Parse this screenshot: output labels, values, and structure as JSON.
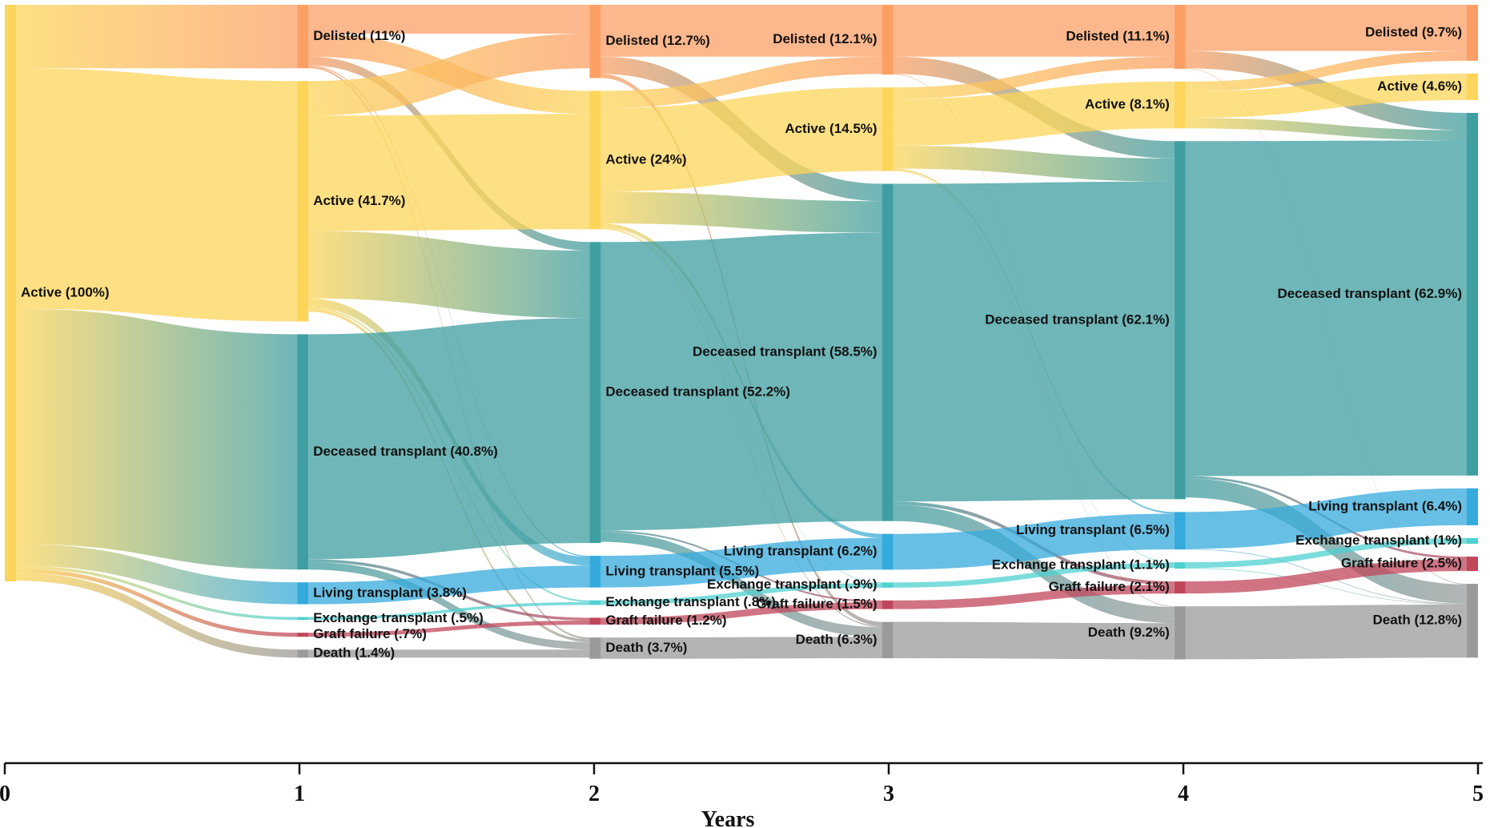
{
  "chart_data": {
    "type": "sankey",
    "xlabel": "Years",
    "xlim": [
      0,
      5
    ],
    "xticks": [
      0,
      1,
      2,
      3,
      4,
      5
    ],
    "columns": [
      {
        "nodes": [
          {
            "label": "Active (100%)",
            "value": 100,
            "color": "#fdd55a"
          }
        ],
        "links": [
          {
            "from": 0,
            "to": 0,
            "value": 11
          },
          {
            "from": 0,
            "to": 1,
            "value": 41.7
          },
          {
            "from": 0,
            "to": 2,
            "value": 40.8
          },
          {
            "from": 0,
            "to": 3,
            "value": 3.8
          },
          {
            "from": 0,
            "to": 4,
            "value": 0.5
          },
          {
            "from": 0,
            "to": 5,
            "value": 0.7
          },
          {
            "from": 0,
            "to": 6,
            "value": 1.4
          }
        ]
      },
      {
        "nodes": [
          {
            "label": "Delisted (11%)",
            "value": 11,
            "color": "#fc9f65"
          },
          {
            "label": "Active (41.7%)",
            "value": 41.7,
            "color": "#fdd55a"
          },
          {
            "label": "Deceased transplant (40.8%)",
            "value": 40.8,
            "color": "#3f9ea0"
          },
          {
            "label": "Living transplant (3.8%)",
            "value": 3.8,
            "color": "#35aadc"
          },
          {
            "label": "Exchange transplant (.5%)",
            "value": 0.5,
            "color": "#4fd1d1"
          },
          {
            "label": "Graft failure (.7%)",
            "value": 0.7,
            "color": "#c0465a"
          },
          {
            "label": "Death (1.4%)",
            "value": 1.4,
            "color": "#9a9a9a"
          }
        ],
        "links": [
          {
            "from": 0,
            "to": 0,
            "value": 5
          },
          {
            "from": 0,
            "to": 1,
            "value": 4
          },
          {
            "from": 0,
            "to": 2,
            "value": 1.5
          },
          {
            "from": 0,
            "to": 3,
            "value": 0.2
          },
          {
            "from": 0,
            "to": 6,
            "value": 0.3
          },
          {
            "from": 1,
            "to": 0,
            "value": 6
          },
          {
            "from": 1,
            "to": 1,
            "value": 20
          },
          {
            "from": 1,
            "to": 2,
            "value": 11.7
          },
          {
            "from": 1,
            "to": 3,
            "value": 1.5
          },
          {
            "from": 1,
            "to": 4,
            "value": 0.3
          },
          {
            "from": 1,
            "to": 6,
            "value": 0.5
          },
          {
            "from": 2,
            "to": 2,
            "value": 39
          },
          {
            "from": 2,
            "to": 5,
            "value": 0.5
          },
          {
            "from": 2,
            "to": 6,
            "value": 1.3
          },
          {
            "from": 3,
            "to": 3,
            "value": 3.8
          },
          {
            "from": 4,
            "to": 4,
            "value": 0.5
          },
          {
            "from": 5,
            "to": 5,
            "value": 0.7
          },
          {
            "from": 6,
            "to": 6,
            "value": 1.4
          }
        ]
      },
      {
        "nodes": [
          {
            "label": "Delisted (12.7%)",
            "value": 12.7,
            "color": "#fc9f65"
          },
          {
            "label": "Active (24%)",
            "value": 24,
            "color": "#fdd55a"
          },
          {
            "label": "Deceased transplant (52.2%)",
            "value": 52.2,
            "color": "#3f9ea0"
          },
          {
            "label": "Living transplant (5.5%)",
            "value": 5.5,
            "color": "#35aadc"
          },
          {
            "label": "Exchange transplant (.8%)",
            "value": 0.8,
            "color": "#4fd1d1"
          },
          {
            "label": "Graft failure (1.2%)",
            "value": 1.2,
            "color": "#c0465a"
          },
          {
            "label": "Death (3.7%)",
            "value": 3.7,
            "color": "#9a9a9a"
          }
        ],
        "links": [
          {
            "from": 0,
            "to": 0,
            "value": 9
          },
          {
            "from": 0,
            "to": 2,
            "value": 3
          },
          {
            "from": 0,
            "to": 6,
            "value": 0.7
          },
          {
            "from": 1,
            "to": 0,
            "value": 3
          },
          {
            "from": 1,
            "to": 1,
            "value": 14.5
          },
          {
            "from": 1,
            "to": 2,
            "value": 5.5
          },
          {
            "from": 1,
            "to": 3,
            "value": 0.7
          },
          {
            "from": 1,
            "to": 4,
            "value": 0.1
          },
          {
            "from": 1,
            "to": 6,
            "value": 0.2
          },
          {
            "from": 2,
            "to": 2,
            "value": 50
          },
          {
            "from": 2,
            "to": 5,
            "value": 0.3
          },
          {
            "from": 2,
            "to": 6,
            "value": 1.7
          },
          {
            "from": 3,
            "to": 3,
            "value": 5.5
          },
          {
            "from": 4,
            "to": 4,
            "value": 0.8
          },
          {
            "from": 5,
            "to": 5,
            "value": 1.2
          },
          {
            "from": 6,
            "to": 6,
            "value": 3.7
          }
        ]
      },
      {
        "nodes": [
          {
            "label": "Delisted (12.1%)",
            "value": 12.1,
            "color": "#fc9f65"
          },
          {
            "label": "Active (14.5%)",
            "value": 14.5,
            "color": "#fdd55a"
          },
          {
            "label": "Deceased transplant (58.5%)",
            "value": 58.5,
            "color": "#3f9ea0"
          },
          {
            "label": "Living transplant (6.2%)",
            "value": 6.2,
            "color": "#35aadc"
          },
          {
            "label": "Exchange transplant (.9%)",
            "value": 0.9,
            "color": "#4fd1d1"
          },
          {
            "label": "Graft failure (1.5%)",
            "value": 1.5,
            "color": "#c0465a"
          },
          {
            "label": "Death (6.3%)",
            "value": 6.3,
            "color": "#9a9a9a"
          }
        ],
        "links": [
          {
            "from": 0,
            "to": 0,
            "value": 9
          },
          {
            "from": 0,
            "to": 2,
            "value": 3
          },
          {
            "from": 0,
            "to": 6,
            "value": 0.1
          },
          {
            "from": 1,
            "to": 0,
            "value": 2
          },
          {
            "from": 1,
            "to": 1,
            "value": 8.1
          },
          {
            "from": 1,
            "to": 2,
            "value": 4
          },
          {
            "from": 1,
            "to": 3,
            "value": 0.3
          },
          {
            "from": 1,
            "to": 4,
            "value": 0.1
          },
          {
            "from": 2,
            "to": 2,
            "value": 55.1
          },
          {
            "from": 2,
            "to": 5,
            "value": 0.6
          },
          {
            "from": 2,
            "to": 6,
            "value": 2.8
          },
          {
            "from": 3,
            "to": 3,
            "value": 6.2
          },
          {
            "from": 4,
            "to": 4,
            "value": 0.9
          },
          {
            "from": 5,
            "to": 5,
            "value": 1.5
          },
          {
            "from": 6,
            "to": 6,
            "value": 6.3
          }
        ]
      },
      {
        "nodes": [
          {
            "label": "Delisted (11.1%)",
            "value": 11.1,
            "color": "#fc9f65"
          },
          {
            "label": "Active (8.1%)",
            "value": 8.1,
            "color": "#fdd55a"
          },
          {
            "label": "Deceased transplant (62.1%)",
            "value": 62.1,
            "color": "#3f9ea0"
          },
          {
            "label": "Living transplant (6.5%)",
            "value": 6.5,
            "color": "#35aadc"
          },
          {
            "label": "Exchange transplant (1.1%)",
            "value": 1.1,
            "color": "#4fd1d1"
          },
          {
            "label": "Graft failure (2.1%)",
            "value": 2.1,
            "color": "#c0465a"
          },
          {
            "label": "Death (9.2%)",
            "value": 9.2,
            "color": "#9a9a9a"
          }
        ],
        "links": [
          {
            "from": 0,
            "to": 0,
            "value": 8
          },
          {
            "from": 0,
            "to": 2,
            "value": 3
          },
          {
            "from": 0,
            "to": 6,
            "value": 0.1
          },
          {
            "from": 1,
            "to": 0,
            "value": 1.7
          },
          {
            "from": 1,
            "to": 1,
            "value": 4.6
          },
          {
            "from": 1,
            "to": 2,
            "value": 1.8
          },
          {
            "from": 2,
            "to": 2,
            "value": 58.1
          },
          {
            "from": 2,
            "to": 5,
            "value": 0.4
          },
          {
            "from": 2,
            "to": 6,
            "value": 3.3
          },
          {
            "from": 3,
            "to": 3,
            "value": 6.4
          },
          {
            "from": 3,
            "to": 6,
            "value": 0.1
          },
          {
            "from": 4,
            "to": 4,
            "value": 1
          },
          {
            "from": 4,
            "to": 6,
            "value": 0.1
          },
          {
            "from": 5,
            "to": 5,
            "value": 2.1
          },
          {
            "from": 6,
            "to": 6,
            "value": 9.2
          }
        ]
      },
      {
        "nodes": [
          {
            "label": "Delisted (9.7%)",
            "value": 9.7,
            "color": "#fc9f65"
          },
          {
            "label": "Active (4.6%)",
            "value": 4.6,
            "color": "#fdd55a"
          },
          {
            "label": "Deceased transplant (62.9%)",
            "value": 62.9,
            "color": "#3f9ea0"
          },
          {
            "label": "Living transplant (6.4%)",
            "value": 6.4,
            "color": "#35aadc"
          },
          {
            "label": "Exchange transplant (1%)",
            "value": 1,
            "color": "#4fd1d1"
          },
          {
            "label": "Graft failure (2.5%)",
            "value": 2.5,
            "color": "#c0465a"
          },
          {
            "label": "Death (12.8%)",
            "value": 12.8,
            "color": "#9a9a9a"
          }
        ],
        "links": []
      }
    ]
  }
}
